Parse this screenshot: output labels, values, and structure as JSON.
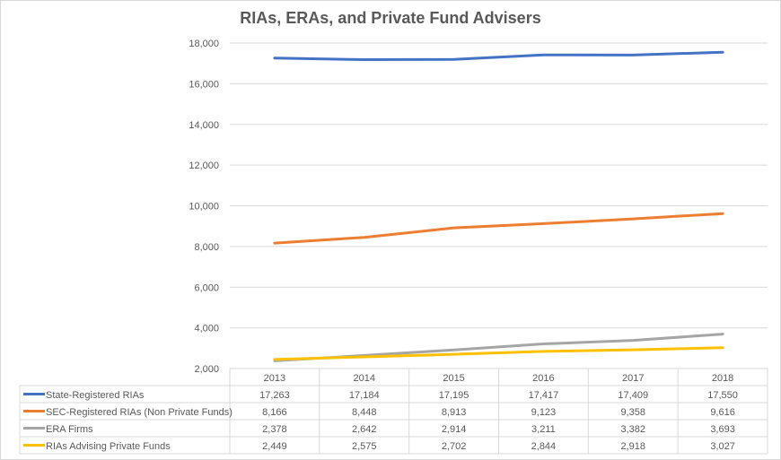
{
  "chart_data": {
    "type": "line",
    "title": "RIAs, ERAs, and Private Fund Advisers",
    "categories": [
      "2013",
      "2014",
      "2015",
      "2016",
      "2017",
      "2018"
    ],
    "ylim": [
      2000,
      18000
    ],
    "yticks": [
      "2,000",
      "4,000",
      "6,000",
      "8,000",
      "10,000",
      "12,000",
      "14,000",
      "16,000",
      "18,000"
    ],
    "grid": true,
    "legend": "data-table",
    "series": [
      {
        "name": "State-Registered RIAs",
        "color": "#4472c4",
        "values": [
          17263,
          17184,
          17195,
          17417,
          17409,
          17550
        ],
        "labels": [
          "17,263",
          "17,184",
          "17,195",
          "17,417",
          "17,409",
          "17,550"
        ]
      },
      {
        "name": "SEC-Registered RIAs (Non Private Funds)",
        "color": "#ed7d31",
        "values": [
          8166,
          8448,
          8913,
          9123,
          9358,
          9616
        ],
        "labels": [
          "8,166",
          "8,448",
          "8,913",
          "9,123",
          "9,358",
          "9,616"
        ]
      },
      {
        "name": "ERA Firms",
        "color": "#a5a5a5",
        "values": [
          2378,
          2642,
          2914,
          3211,
          3382,
          3693
        ],
        "labels": [
          "2,378",
          "2,642",
          "2,914",
          "3,211",
          "3,382",
          "3,693"
        ]
      },
      {
        "name": "RIAs Advising Private Funds",
        "color": "#ffc000",
        "values": [
          2449,
          2575,
          2702,
          2844,
          2918,
          3027
        ],
        "labels": [
          "2,449",
          "2,575",
          "2,702",
          "2,844",
          "2,918",
          "3,027"
        ]
      }
    ]
  }
}
